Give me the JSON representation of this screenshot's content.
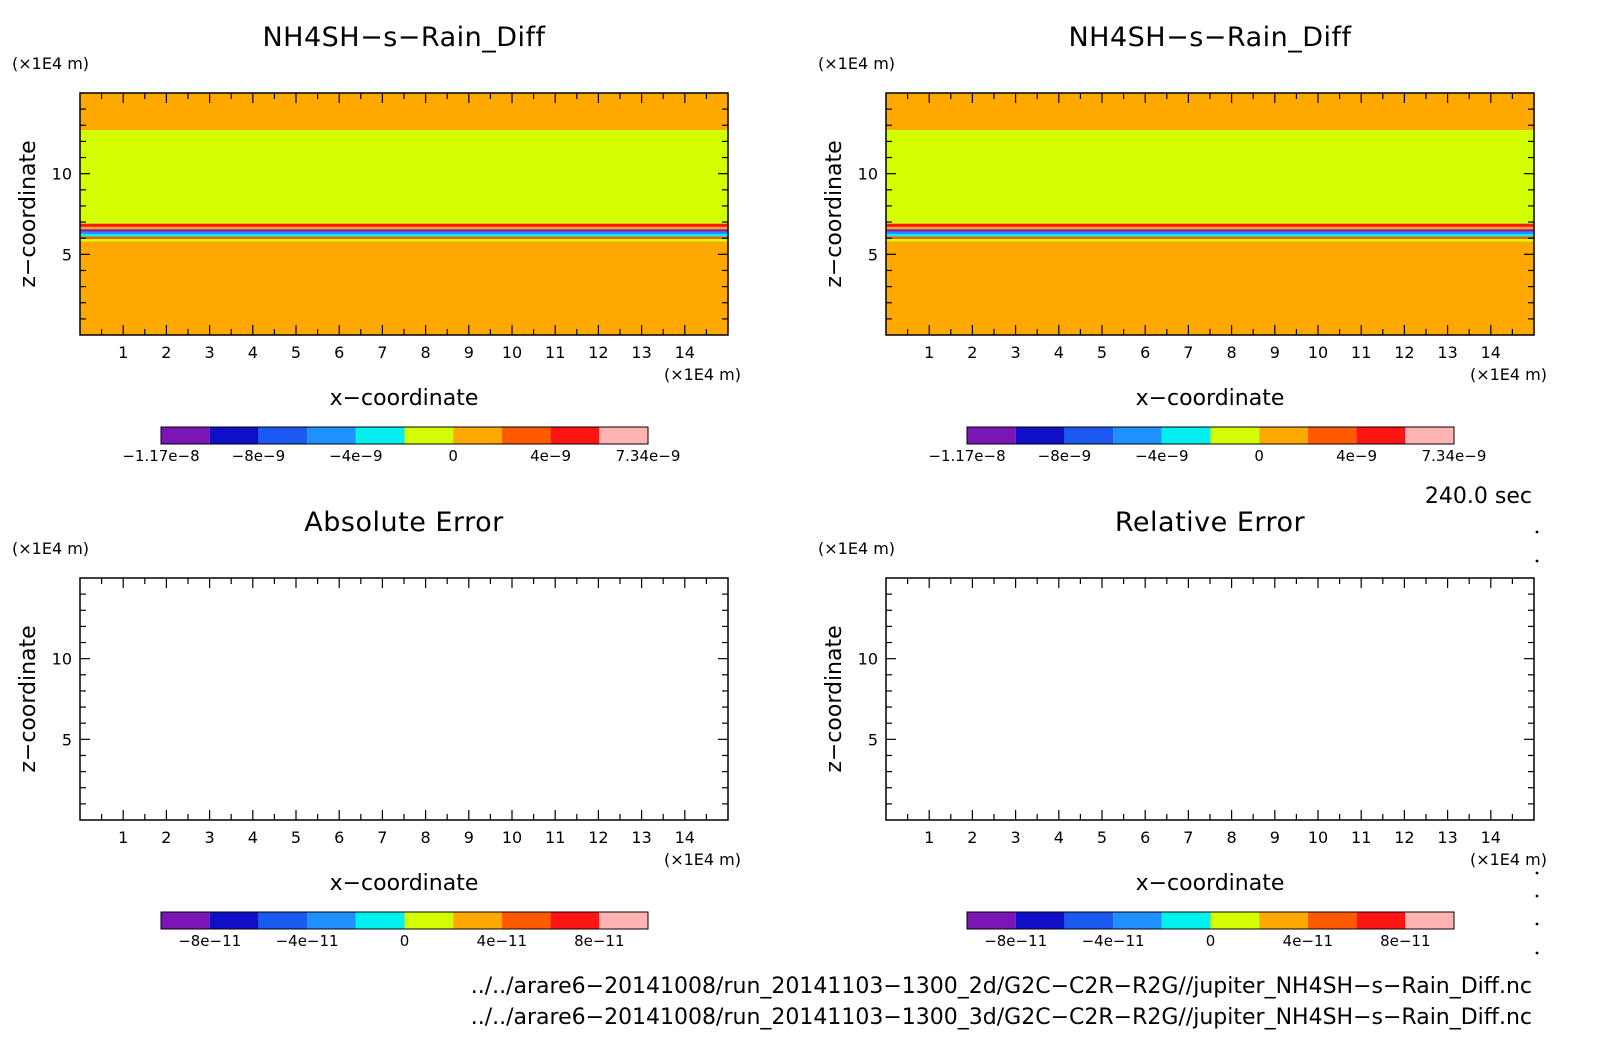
{
  "panels": [
    {
      "title": "NH4SH−s−Rain_Diff",
      "filled": true,
      "zunit": "(×1E4 m)",
      "xunit": "(×1E4 m)",
      "xlabel": "x−coordinate",
      "ylabel": "z−coordinate",
      "colorbar_labels": [
        "−1.17e−8",
        "−8e−9",
        "−4e−9",
        "0",
        "4e−9",
        "7.34e−9"
      ]
    },
    {
      "title": "NH4SH−s−Rain_Diff",
      "filled": true,
      "zunit": "(×1E4 m)",
      "xunit": "(×1E4 m)",
      "xlabel": "x−coordinate",
      "ylabel": "z−coordinate",
      "colorbar_labels": [
        "−1.17e−8",
        "−8e−9",
        "−4e−9",
        "0",
        "4e−9",
        "7.34e−9"
      ]
    },
    {
      "title": "Absolute Error",
      "filled": false,
      "zunit": "(×1E4 m)",
      "xunit": "(×1E4 m)",
      "xlabel": "x−coordinate",
      "ylabel": "z−coordinate",
      "colorbar_labels": [
        "−8e−11",
        "−4e−11",
        "0",
        "4e−11",
        "8e−11"
      ]
    },
    {
      "title": "Relative Error",
      "filled": false,
      "zunit": "(×1E4 m)",
      "xunit": "(×1E4 m)",
      "xlabel": "x−coordinate",
      "ylabel": "z−coordinate",
      "colorbar_labels": [
        "−8e−11",
        "−4e−11",
        "0",
        "4e−11",
        "8e−11"
      ]
    }
  ],
  "time_label": "240.0 sec",
  "footer": {
    "line1": "../../arare6−20141008/run_20141103−1300_2d/G2C−C2R−R2G//jupiter_NH4SH−s−Rain_Diff.nc",
    "line2": "../../arare6−20141008/run_20141103−1300_3d/G2C−C2R−R2G//jupiter_NH4SH−s−Rain_Diff.nc"
  },
  "chart_data": [
    {
      "type": "heatmap",
      "title": "NH4SH−s−Rain_Diff",
      "xlabel": "x−coordinate",
      "ylabel": "z−coordinate",
      "xlim": [
        0,
        15
      ],
      "ylim": [
        0,
        15
      ],
      "xticks": [
        1,
        2,
        3,
        4,
        5,
        6,
        7,
        8,
        9,
        10,
        11,
        12,
        13,
        14
      ],
      "yticks": [
        5,
        10
      ],
      "colors": [
        "#7a16b6",
        "#0f0fc8",
        "#1a5af0",
        "#1e90ff",
        "#00f0f0",
        "#d4ff00",
        "#ffa800",
        "#ff5a00",
        "#ff1414",
        "#ffb4b4"
      ],
      "colorbar_ticks": [
        "−1.17e−8",
        "−8e−9",
        "−4e−9",
        "0",
        "4e−9",
        "7.34e−9"
      ],
      "bands": [
        {
          "z_from": 12.7,
          "z_to": 15.0,
          "color": "#ffa800"
        },
        {
          "z_from": 6.9,
          "z_to": 12.7,
          "color": "#d4ff00"
        },
        {
          "z_from": 6.7,
          "z_to": 6.9,
          "color": "#ff1414"
        },
        {
          "z_from": 6.55,
          "z_to": 6.7,
          "color": "#ffa800"
        },
        {
          "z_from": 6.4,
          "z_to": 6.55,
          "color": "#7a16b6"
        },
        {
          "z_from": 6.25,
          "z_to": 6.4,
          "color": "#1e90ff"
        },
        {
          "z_from": 6.1,
          "z_to": 6.25,
          "color": "#00f0f0"
        },
        {
          "z_from": 5.95,
          "z_to": 6.1,
          "color": "#ff5a00"
        },
        {
          "z_from": 5.8,
          "z_to": 5.95,
          "color": "#d4ff00"
        },
        {
          "z_from": 0.0,
          "z_to": 5.8,
          "color": "#ffa800"
        }
      ]
    },
    {
      "type": "heatmap",
      "title": "NH4SH−s−Rain_Diff",
      "xlabel": "x−coordinate",
      "ylabel": "z−coordinate",
      "xlim": [
        0,
        15
      ],
      "ylim": [
        0,
        15
      ],
      "xticks": [
        1,
        2,
        3,
        4,
        5,
        6,
        7,
        8,
        9,
        10,
        11,
        12,
        13,
        14
      ],
      "yticks": [
        5,
        10
      ],
      "colors": [
        "#7a16b6",
        "#0f0fc8",
        "#1a5af0",
        "#1e90ff",
        "#00f0f0",
        "#d4ff00",
        "#ffa800",
        "#ff5a00",
        "#ff1414",
        "#ffb4b4"
      ],
      "colorbar_ticks": [
        "−1.17e−8",
        "−8e−9",
        "−4e−9",
        "0",
        "4e−9",
        "7.34e−9"
      ],
      "bands": [
        {
          "z_from": 12.7,
          "z_to": 15.0,
          "color": "#ffa800"
        },
        {
          "z_from": 6.9,
          "z_to": 12.7,
          "color": "#d4ff00"
        },
        {
          "z_from": 6.7,
          "z_to": 6.9,
          "color": "#ff1414"
        },
        {
          "z_from": 6.55,
          "z_to": 6.7,
          "color": "#ffa800"
        },
        {
          "z_from": 6.4,
          "z_to": 6.55,
          "color": "#7a16b6"
        },
        {
          "z_from": 6.25,
          "z_to": 6.4,
          "color": "#1e90ff"
        },
        {
          "z_from": 6.1,
          "z_to": 6.25,
          "color": "#00f0f0"
        },
        {
          "z_from": 5.95,
          "z_to": 6.1,
          "color": "#ff5a00"
        },
        {
          "z_from": 5.8,
          "z_to": 5.95,
          "color": "#d4ff00"
        },
        {
          "z_from": 0.0,
          "z_to": 5.8,
          "color": "#ffa800"
        }
      ]
    },
    {
      "type": "heatmap",
      "title": "Absolute Error",
      "xlabel": "x−coordinate",
      "ylabel": "z−coordinate",
      "xlim": [
        0,
        15
      ],
      "ylim": [
        0,
        15
      ],
      "xticks": [
        1,
        2,
        3,
        4,
        5,
        6,
        7,
        8,
        9,
        10,
        11,
        12,
        13,
        14
      ],
      "yticks": [
        5,
        10
      ],
      "colors": [
        "#7a16b6",
        "#0f0fc8",
        "#1a5af0",
        "#1e90ff",
        "#00f0f0",
        "#d4ff00",
        "#ffa800",
        "#ff5a00",
        "#ff1414",
        "#ffb4b4"
      ],
      "colorbar_ticks": [
        "−8e−11",
        "−4e−11",
        "0",
        "4e−11",
        "8e−11"
      ],
      "bands": []
    },
    {
      "type": "heatmap",
      "title": "Relative Error",
      "xlabel": "x−coordinate",
      "ylabel": "z−coordinate",
      "xlim": [
        0,
        15
      ],
      "ylim": [
        0,
        15
      ],
      "xticks": [
        1,
        2,
        3,
        4,
        5,
        6,
        7,
        8,
        9,
        10,
        11,
        12,
        13,
        14
      ],
      "yticks": [
        5,
        10
      ],
      "colors": [
        "#7a16b6",
        "#0f0fc8",
        "#1a5af0",
        "#1e90ff",
        "#00f0f0",
        "#d4ff00",
        "#ffa800",
        "#ff5a00",
        "#ff1414",
        "#ffb4b4"
      ],
      "colorbar_ticks": [
        "−8e−11",
        "−4e−11",
        "0",
        "4e−11",
        "8e−11"
      ],
      "bands": []
    }
  ]
}
